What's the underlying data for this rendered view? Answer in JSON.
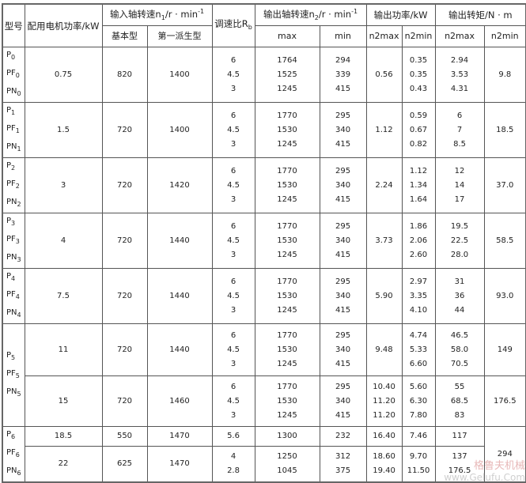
{
  "header": {
    "model": "型号",
    "motor_power": "配用电机功率/kW",
    "input_speed": {
      "prefix": "输入轴转速n",
      "sub": "1",
      "unit": "/r · min",
      "sup": "-1"
    },
    "ratio": {
      "prefix": "调速比R",
      "sub": "b"
    },
    "output_speed": {
      "prefix": "输出轴转速n",
      "sub": "2",
      "unit": "/r · min",
      "sup": "-1"
    },
    "output_power": "输出功率/kW",
    "output_torque": "输出转矩/N · m",
    "sub_basic": "基本型",
    "sub_derived": "第一派生型",
    "sub_max": "max",
    "sub_min": "min",
    "sub_n2max_p": "n2max",
    "sub_n2min_p": "n2min",
    "sub_n2max_t": "n2max",
    "sub_n2min_t": "n2min"
  },
  "groups": [
    {
      "models": [
        {
          "b": "P",
          "s": "0"
        },
        {
          "b": "PF",
          "s": "0"
        },
        {
          "b": "PN",
          "s": "0"
        }
      ],
      "rows": [
        {
          "power": "0.75",
          "basic": "820",
          "derived": "1400",
          "ratio": [
            "6",
            "4.5",
            "3"
          ],
          "n2max": [
            "1764",
            "1525",
            "1245"
          ],
          "n2min": [
            "294",
            "339",
            "415"
          ],
          "pmax": [
            "0.56"
          ],
          "pmin": [
            "0.35",
            "0.35",
            "0.43"
          ],
          "tmax": [
            "2.94",
            "3.53",
            "4.31"
          ],
          "tmin": "9.8"
        }
      ]
    },
    {
      "models": [
        {
          "b": "P",
          "s": "1"
        },
        {
          "b": "PF",
          "s": "1"
        },
        {
          "b": "PN",
          "s": "1"
        }
      ],
      "rows": [
        {
          "power": "1.5",
          "basic": "720",
          "derived": "1400",
          "ratio": [
            "6",
            "4.5",
            "3"
          ],
          "n2max": [
            "1770",
            "1530",
            "1245"
          ],
          "n2min": [
            "295",
            "340",
            "415"
          ],
          "pmax": [
            "1.12"
          ],
          "pmin": [
            "0.59",
            "0.67",
            "0.82"
          ],
          "tmax": [
            "6",
            "7",
            "8.5"
          ],
          "tmin": "18.5"
        }
      ]
    },
    {
      "models": [
        {
          "b": "P",
          "s": "2"
        },
        {
          "b": "PF",
          "s": "2"
        },
        {
          "b": "PN",
          "s": "2"
        }
      ],
      "rows": [
        {
          "power": "3",
          "basic": "720",
          "derived": "1420",
          "ratio": [
            "6",
            "4.5",
            "3"
          ],
          "n2max": [
            "1770",
            "1530",
            "1245"
          ],
          "n2min": [
            "295",
            "340",
            "415"
          ],
          "pmax": [
            "2.24"
          ],
          "pmin": [
            "1.12",
            "1.34",
            "1.64"
          ],
          "tmax": [
            "12",
            "14",
            "17"
          ],
          "tmin": "37.0"
        }
      ]
    },
    {
      "models": [
        {
          "b": "P",
          "s": "3"
        },
        {
          "b": "PF",
          "s": "3"
        },
        {
          "b": "PN",
          "s": "3"
        }
      ],
      "rows": [
        {
          "power": "4",
          "basic": "720",
          "derived": "1440",
          "ratio": [
            "6",
            "4.5",
            "3"
          ],
          "n2max": [
            "1770",
            "1530",
            "1245"
          ],
          "n2min": [
            "295",
            "340",
            "415"
          ],
          "pmax": [
            "3.73"
          ],
          "pmin": [
            "1.86",
            "2.06",
            "2.60"
          ],
          "tmax": [
            "19.5",
            "22.5",
            "28.0"
          ],
          "tmin": "58.5"
        }
      ]
    },
    {
      "models": [
        {
          "b": "P",
          "s": "4"
        },
        {
          "b": "PF",
          "s": "4"
        },
        {
          "b": "PN",
          "s": "4"
        }
      ],
      "rows": [
        {
          "power": "7.5",
          "basic": "720",
          "derived": "1440",
          "ratio": [
            "6",
            "4.5",
            "3"
          ],
          "n2max": [
            "1770",
            "1530",
            "1245"
          ],
          "n2min": [
            "295",
            "340",
            "415"
          ],
          "pmax": [
            "5.90"
          ],
          "pmin": [
            "2.97",
            "3.35",
            "4.10"
          ],
          "tmax": [
            "31",
            "36",
            "44"
          ],
          "tmin": "93.0"
        }
      ]
    },
    {
      "models": [
        {
          "b": "P",
          "s": "5"
        },
        {
          "b": "PF",
          "s": "5"
        },
        {
          "b": "PN",
          "s": "5"
        }
      ],
      "rows": [
        {
          "power": "11",
          "basic": "720",
          "derived": "1440",
          "ratio": [
            "6",
            "4.5",
            "3"
          ],
          "n2max": [
            "1770",
            "1530",
            "1245"
          ],
          "n2min": [
            "295",
            "340",
            "415"
          ],
          "pmax": [
            "9.48"
          ],
          "pmin": [
            "4.74",
            "5.33",
            "6.60"
          ],
          "tmax": [
            "46.5",
            "58.0",
            "70.5"
          ],
          "tmin": "149"
        },
        {
          "power": "15",
          "basic": "720",
          "derived": "1460",
          "ratio": [
            "6",
            "4.5",
            "3"
          ],
          "n2max": [
            "1770",
            "1530",
            "1245"
          ],
          "n2min": [
            "295",
            "340",
            "415"
          ],
          "pmax": [
            "10.40",
            "11.20",
            "11.20"
          ],
          "pmin": [
            "5.60",
            "6.30",
            "7.80"
          ],
          "tmax": [
            "55",
            "68.5",
            "83"
          ],
          "tmin": "176.5"
        }
      ]
    },
    {
      "models": [
        {
          "b": "P",
          "s": "6"
        },
        {
          "b": "PF",
          "s": "6"
        },
        {
          "b": "PN",
          "s": "6"
        }
      ],
      "shared_tmin": "294",
      "rows": [
        {
          "power": "18.5",
          "basic": "550",
          "derived": "1470",
          "ratio": [
            "5.6"
          ],
          "n2max": [
            "1300"
          ],
          "n2min": [
            "232"
          ],
          "pmax": [
            "16.40"
          ],
          "pmin": [
            "7.46"
          ],
          "tmax": [
            "117"
          ]
        },
        {
          "power": "22",
          "basic": "625",
          "derived": "1470",
          "ratio": [
            "4",
            "2.8"
          ],
          "n2max": [
            "1250",
            "1045"
          ],
          "n2min": [
            "312",
            "375"
          ],
          "pmax": [
            "18.60",
            "19.40"
          ],
          "pmin": [
            "9.70",
            "11.50"
          ],
          "tmax": [
            "137",
            "176.5"
          ]
        }
      ]
    }
  ],
  "watermark": {
    "cn": "格鲁夫机械",
    "url": "www.Gelufu.Com"
  }
}
